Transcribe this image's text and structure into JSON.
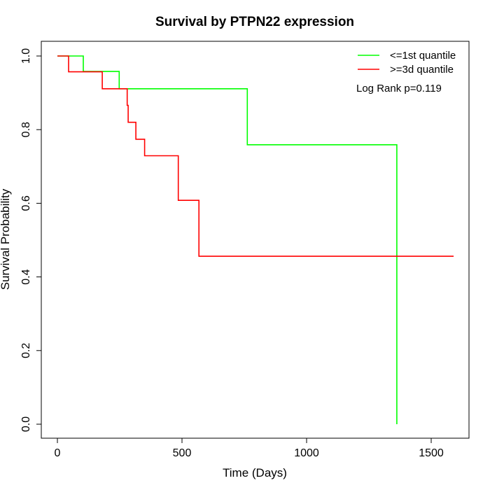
{
  "chart_data": {
    "type": "line",
    "title": "Survival by PTPN22 expression",
    "xlabel": "Time (Days)",
    "ylabel": "Survival Probability",
    "xlim": [
      0,
      1600
    ],
    "ylim": [
      0,
      1
    ],
    "x_ticks": [
      0,
      500,
      1000,
      1500
    ],
    "y_ticks": [
      "0.0",
      "0.2",
      "0.4",
      "0.6",
      "0.8",
      "1.0"
    ],
    "legend_position": "top-right",
    "annotation": "Log Rank p=0.119",
    "series": [
      {
        "name": "<=1st quantile",
        "color": "#00ff00",
        "x": [
          0,
          104,
          104,
          248,
          248,
          762,
          762,
          1362,
          1362
        ],
        "y": [
          1.0,
          1.0,
          0.958,
          0.958,
          0.911,
          0.911,
          0.759,
          0.759,
          0.0
        ]
      },
      {
        "name": ">=3d quantile",
        "color": "#ff0000",
        "x": [
          0,
          45,
          45,
          180,
          180,
          280,
          280,
          284,
          284,
          315,
          315,
          350,
          350,
          485,
          485,
          568,
          568,
          1590
        ],
        "y": [
          1.0,
          1.0,
          0.957,
          0.957,
          0.911,
          0.911,
          0.866,
          0.866,
          0.82,
          0.82,
          0.774,
          0.774,
          0.729,
          0.729,
          0.608,
          0.608,
          0.456,
          0.456
        ]
      }
    ]
  }
}
